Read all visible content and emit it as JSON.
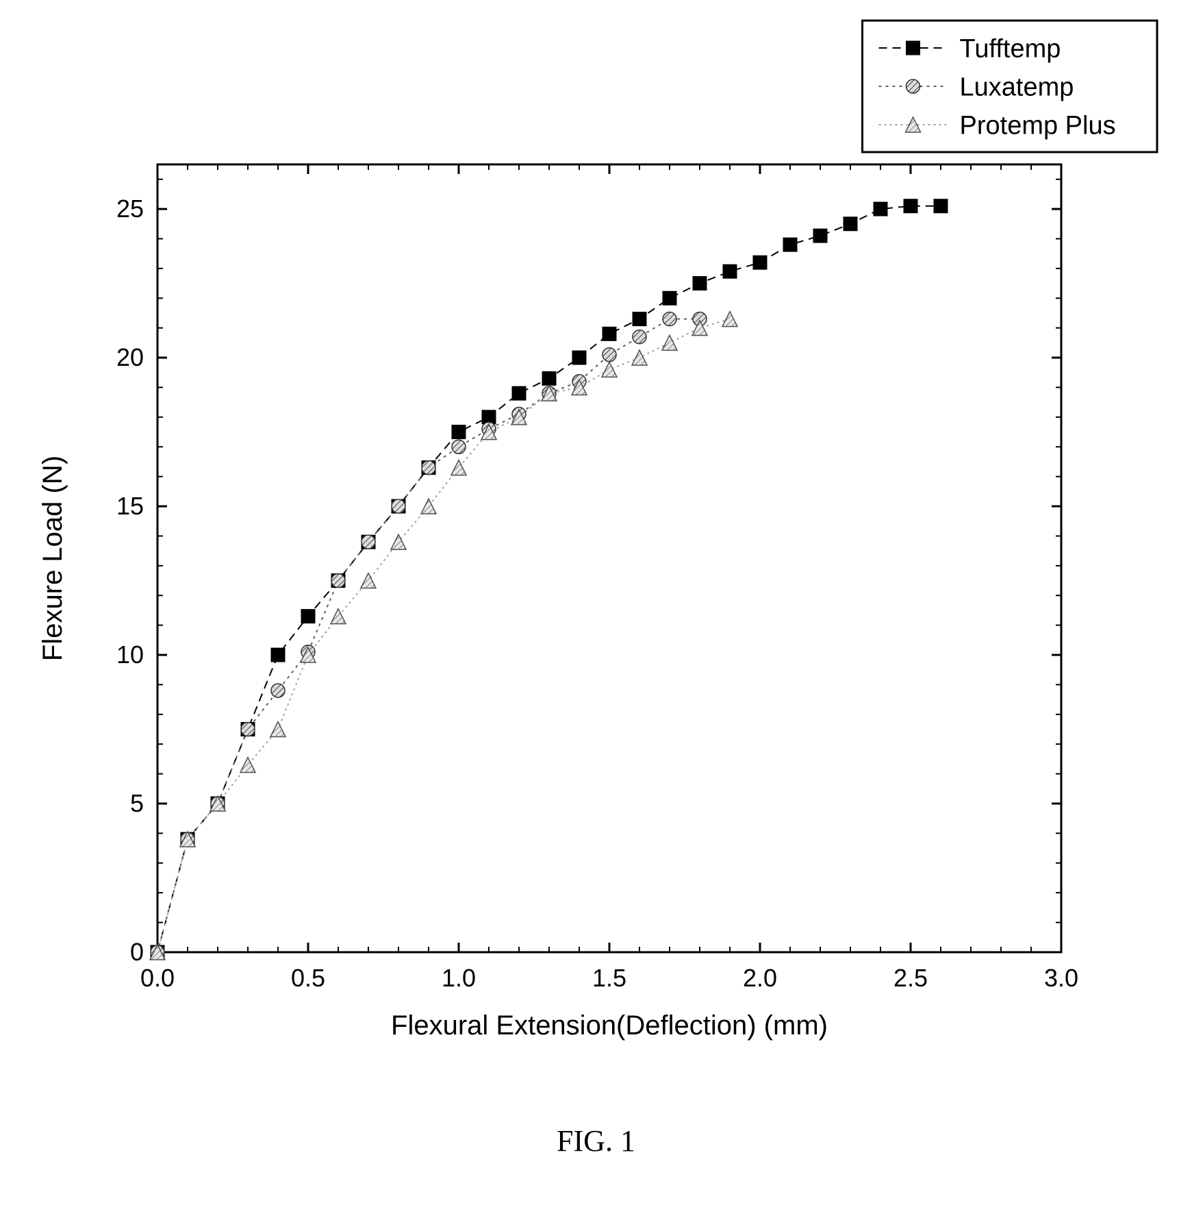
{
  "chart": {
    "type": "line-scatter",
    "background_color": "#ffffff",
    "plot_border_color": "#000000",
    "plot_border_width": 3,
    "xlabel": "Flexural Extension(Deflection) (mm)",
    "ylabel": "Flexure Load (N)",
    "label_fontsize": 40,
    "label_color": "#000000",
    "tick_fontsize": 36,
    "tick_color": "#000000",
    "xlim": [
      0.0,
      3.0
    ],
    "ylim": [
      0,
      26.5
    ],
    "xticks": [
      0.0,
      0.5,
      1.0,
      1.5,
      2.0,
      2.5,
      3.0
    ],
    "yticks": [
      0,
      5,
      10,
      15,
      20,
      25
    ],
    "xtick_labels": [
      "0.0",
      "0.5",
      "1.0",
      "1.5",
      "2.0",
      "2.5",
      "3.0"
    ],
    "ytick_labels": [
      "0",
      "5",
      "10",
      "15",
      "20",
      "25"
    ],
    "minor_tick_step_x": 0.1,
    "minor_tick_step_y": 1,
    "series": [
      {
        "name": "Tufftemp",
        "marker": "square-solid",
        "marker_fill": "#000000",
        "marker_stroke": "#000000",
        "marker_size": 20,
        "line_dash": "12,8",
        "line_color": "#000000",
        "line_width": 2,
        "x": [
          0.0,
          0.1,
          0.2,
          0.3,
          0.4,
          0.5,
          0.6,
          0.7,
          0.8,
          0.9,
          1.0,
          1.1,
          1.2,
          1.3,
          1.4,
          1.5,
          1.6,
          1.7,
          1.8,
          1.9,
          2.0,
          2.1,
          2.2,
          2.3,
          2.4,
          2.5,
          2.6
        ],
        "y": [
          0.0,
          3.8,
          5.0,
          7.5,
          10.0,
          11.3,
          12.5,
          13.8,
          15.0,
          16.3,
          17.5,
          18.0,
          18.8,
          19.3,
          20.0,
          20.8,
          21.3,
          22.0,
          22.5,
          22.9,
          23.2,
          23.8,
          24.1,
          24.5,
          25.0,
          25.1,
          25.1
        ]
      },
      {
        "name": "Luxatemp",
        "marker": "circle-hatched",
        "marker_fill": "#808080",
        "marker_stroke": "#303030",
        "marker_size": 20,
        "line_dash": "4,6",
        "line_color": "#606060",
        "line_width": 2,
        "x": [
          0.0,
          0.1,
          0.2,
          0.3,
          0.4,
          0.5,
          0.6,
          0.7,
          0.8,
          0.9,
          1.0,
          1.1,
          1.2,
          1.3,
          1.4,
          1.5,
          1.6,
          1.7,
          1.8
        ],
        "y": [
          0.0,
          3.8,
          5.0,
          7.5,
          8.8,
          10.1,
          12.5,
          13.8,
          15.0,
          16.3,
          17.0,
          17.6,
          18.1,
          18.8,
          19.2,
          20.1,
          20.7,
          21.3,
          21.3
        ]
      },
      {
        "name": "Protemp Plus",
        "marker": "triangle-hatched",
        "marker_fill": "#b0b0b0",
        "marker_stroke": "#505050",
        "marker_size": 22,
        "line_dash": "3,5",
        "line_color": "#a0a0a0",
        "line_width": 2,
        "x": [
          0.0,
          0.1,
          0.2,
          0.3,
          0.4,
          0.5,
          0.6,
          0.7,
          0.8,
          0.9,
          1.0,
          1.1,
          1.2,
          1.3,
          1.4,
          1.5,
          1.6,
          1.7,
          1.8,
          1.9
        ],
        "y": [
          0.0,
          3.8,
          5.0,
          6.3,
          7.5,
          10.0,
          11.3,
          12.5,
          13.8,
          15.0,
          16.3,
          17.5,
          18.0,
          18.8,
          19.0,
          19.6,
          20.0,
          20.5,
          21.0,
          21.3
        ]
      }
    ],
    "legend": {
      "border_color": "#000000",
      "border_width": 3,
      "background": "#ffffff",
      "fontsize": 38,
      "position": "top-right-outside"
    }
  },
  "caption": "FIG. 1",
  "caption_fontsize": 44
}
